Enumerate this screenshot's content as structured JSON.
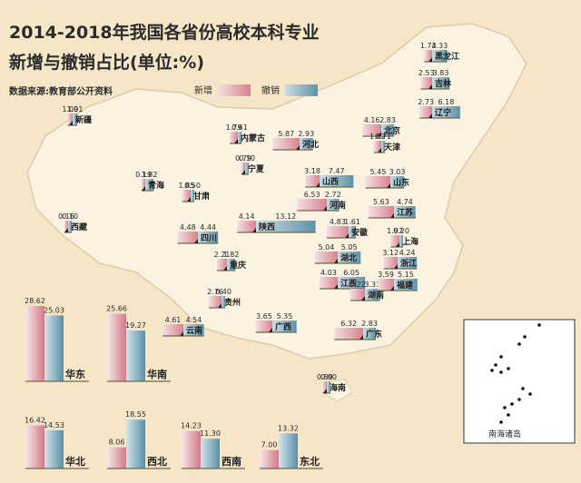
{
  "title_line1": "2014-2018年我国各省份高校本科专业",
  "title_line2": "新增与撤销占比(单位:%)",
  "source": "数据来源:教育部公开资料",
  "legend": {
    "new_label": "新增",
    "cancel_label": "撤销"
  },
  "inset_label": "南海诸岛",
  "colors": {
    "new": "#d9828e",
    "new_light": "#f4dfe3",
    "cancel": "#5f93a8",
    "cancel_light": "#c9dde6",
    "land": "#fbf2e2",
    "border": "#d9c9a8"
  },
  "chart_data": {
    "type": "bar",
    "title": "2014-2018年我国各省份高校本科专业新增与撤销占比(单位:%)",
    "series_names": [
      "新增",
      "撤销"
    ],
    "provinces": [
      {
        "name": "黑龙江",
        "new": 1.74,
        "cancel": 3.33
      },
      {
        "name": "吉林",
        "new": 2.53,
        "cancel": 3.83
      },
      {
        "name": "辽宁",
        "new": 2.73,
        "cancel": 6.18
      },
      {
        "name": "北京",
        "new": 4.16,
        "cancel": 2.83
      },
      {
        "name": "天津",
        "new": 1.62,
        "cancel": 0.71
      },
      {
        "name": "新疆",
        "new": 1.09,
        "cancel": 1.01
      },
      {
        "name": "内蒙古",
        "new": 1.79,
        "cancel": 0.61
      },
      {
        "name": "河北",
        "new": 5.87,
        "cancel": 2.93
      },
      {
        "name": "宁夏",
        "new": 0.79,
        "cancel": 0.1
      },
      {
        "name": "青海",
        "new": 0.19,
        "cancel": 1.82
      },
      {
        "name": "甘肃",
        "new": 1.85,
        "cancel": 0.5
      },
      {
        "name": "山西",
        "new": 3.18,
        "cancel": 7.47
      },
      {
        "name": "山东",
        "new": 5.45,
        "cancel": 3.03
      },
      {
        "name": "陕西",
        "new": 4.14,
        "cancel": 13.12
      },
      {
        "name": "河南",
        "new": 6.53,
        "cancel": 2.72
      },
      {
        "name": "江苏",
        "new": 5.63,
        "cancel": 4.74
      },
      {
        "name": "安徽",
        "new": 4.83,
        "cancel": 1.61
      },
      {
        "name": "西藏",
        "new": 0.16,
        "cancel": 0.1
      },
      {
        "name": "四川",
        "new": 4.48,
        "cancel": 4.44
      },
      {
        "name": "上海",
        "new": 1.97,
        "cancel": 0.2
      },
      {
        "name": "湖北",
        "new": 5.04,
        "cancel": 5.05
      },
      {
        "name": "重庆",
        "new": 2.21,
        "cancel": 1.82
      },
      {
        "name": "浙江",
        "new": 3.12,
        "cancel": 4.24
      },
      {
        "name": "江西",
        "new": 4.03,
        "cancel": 6.05
      },
      {
        "name": "湖南",
        "new": 3.22,
        "cancel": 3.33
      },
      {
        "name": "福建",
        "new": 3.59,
        "cancel": 5.15
      },
      {
        "name": "贵州",
        "new": 2.76,
        "cancel": 0.4
      },
      {
        "name": "云南",
        "new": 4.61,
        "cancel": 4.54
      },
      {
        "name": "广西",
        "new": 3.65,
        "cancel": 5.35
      },
      {
        "name": "广东",
        "new": 6.32,
        "cancel": 2.83
      },
      {
        "name": "海南",
        "new": 0.89,
        "cancel": 0.0
      }
    ],
    "regions": [
      {
        "name": "华东",
        "new": 28.62,
        "cancel": 25.03
      },
      {
        "name": "华南",
        "new": 25.66,
        "cancel": 19.27
      },
      {
        "name": "华北",
        "new": 16.42,
        "cancel": 14.53
      },
      {
        "name": "西北",
        "new": 8.06,
        "cancel": 18.55
      },
      {
        "name": "西南",
        "new": 14.23,
        "cancel": 11.3
      },
      {
        "name": "东北",
        "new": 7.0,
        "cancel": 13.32
      }
    ]
  }
}
